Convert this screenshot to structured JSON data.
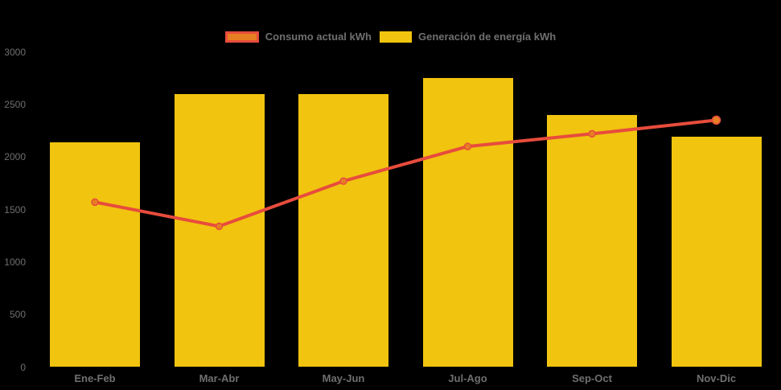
{
  "chart_data": {
    "type": "combo",
    "title": "",
    "categories": [
      "Ene-Feb",
      "Mar-Abr",
      "May-Jun",
      "Jul-Ago",
      "Sep-Oct",
      "Nov-Dic"
    ],
    "series": [
      {
        "name": "Consumo actual kWh",
        "type": "line",
        "values": [
          1570,
          1340,
          1770,
          2100,
          2220,
          2350
        ]
      },
      {
        "name": "Generación de energía kWh",
        "type": "bar",
        "values": [
          2140,
          2600,
          2600,
          2750,
          2400,
          2190
        ]
      }
    ],
    "xlabel": "",
    "ylabel": "",
    "y_axis": {
      "min": 0,
      "max": 3000,
      "step": 500,
      "ticks": [
        0,
        500,
        1000,
        1500,
        2000,
        2500,
        3000
      ]
    },
    "legend_position": "top",
    "grid": false,
    "colors": {
      "bar": "#f1c40f",
      "line": "#e74c3c",
      "marker": "#e67e22",
      "text": "#6f6f6f",
      "background": "#000000"
    }
  }
}
